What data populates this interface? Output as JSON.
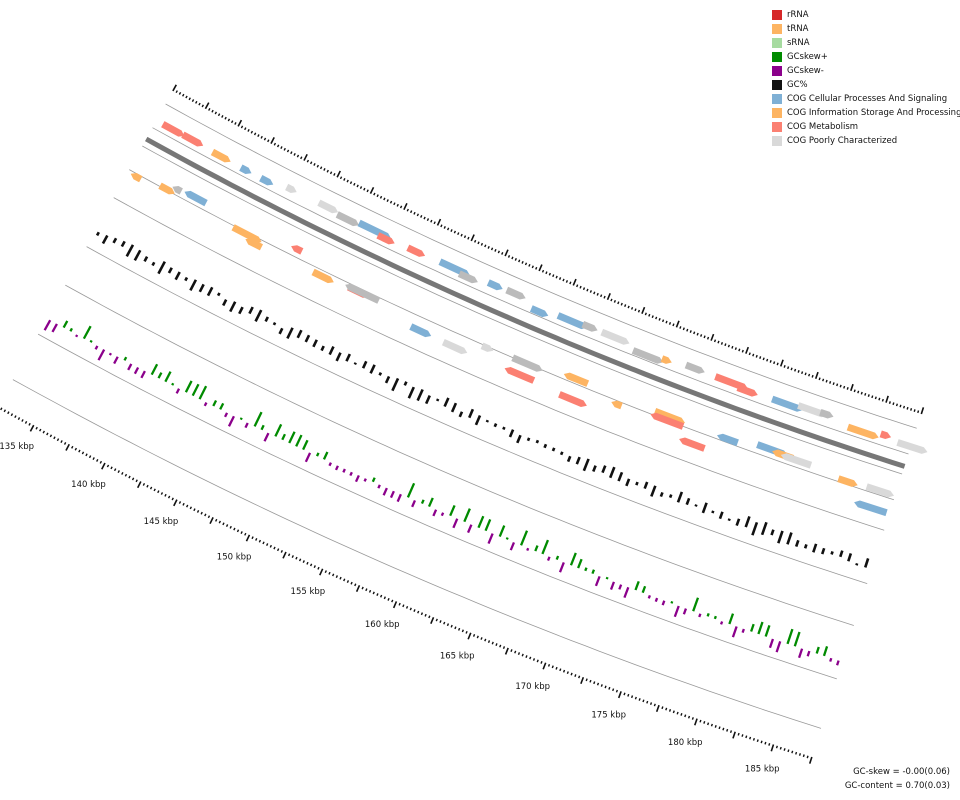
{
  "legend": [
    {
      "label": "rRNA",
      "color": "#d62728"
    },
    {
      "label": "tRNA",
      "color": "#fdb462"
    },
    {
      "label": "sRNA",
      "color": "#a6dba0"
    },
    {
      "label": "GCskew+",
      "color": "#008b00"
    },
    {
      "label": "GCskew-",
      "color": "#8b008b"
    },
    {
      "label": "GC%",
      "color": "#111111"
    },
    {
      "label": "COG Cellular Processes And Signaling",
      "color": "#7fb0d5"
    },
    {
      "label": "COG Information Storage And Processing",
      "color": "#fdb462"
    },
    {
      "label": "COG Metabolism",
      "color": "#fb8072"
    },
    {
      "label": "COG Poorly Characterized",
      "color": "#d9d9d9"
    }
  ],
  "ticks": [
    "135 kbp",
    "140 kbp",
    "145 kbp",
    "150 kbp",
    "155 kbp",
    "160 kbp",
    "165 kbp",
    "170 kbp",
    "175 kbp",
    "180 kbp",
    "185 kbp"
  ],
  "stats": {
    "gc_skew": "GC-skew = -0.00(0.06)",
    "gc_content": "GC-content = 0.70(0.03)"
  },
  "colors": {
    "backbone": "#777777",
    "ring_line": "#999999",
    "gc_content": "#111111",
    "skew_pos": "#008b00",
    "skew_neg": "#8b008b",
    "cog_cellular": "#7fb0d5",
    "cog_info": "#fdb462",
    "cog_metab": "#fb8072",
    "cog_poor": "#d9d9d9",
    "gray_gene": "#bbbbbb"
  }
}
